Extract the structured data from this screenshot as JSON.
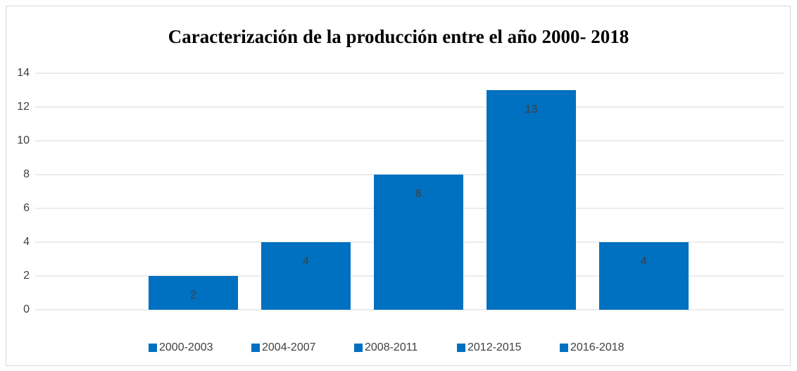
{
  "chart_data": {
    "type": "bar",
    "title": "Caracterización de la producción entre el año 2000- 2018",
    "categories": [
      null
    ],
    "series": [
      {
        "name": "2000-2003",
        "color": "#0070c0",
        "values": [
          2
        ]
      },
      {
        "name": "2004-2007",
        "color": "#0070c0",
        "values": [
          4
        ]
      },
      {
        "name": "2008-2011",
        "color": "#0070c0",
        "values": [
          8
        ]
      },
      {
        "name": "2012-2015",
        "color": "#0070c0",
        "values": [
          13
        ]
      },
      {
        "name": "2016-2018",
        "color": "#0070c0",
        "values": [
          4
        ]
      }
    ],
    "ylim": [
      0,
      14
    ],
    "yticks": [
      0,
      2,
      4,
      6,
      8,
      10,
      12,
      14
    ],
    "grid": true,
    "legend": "bottom"
  }
}
